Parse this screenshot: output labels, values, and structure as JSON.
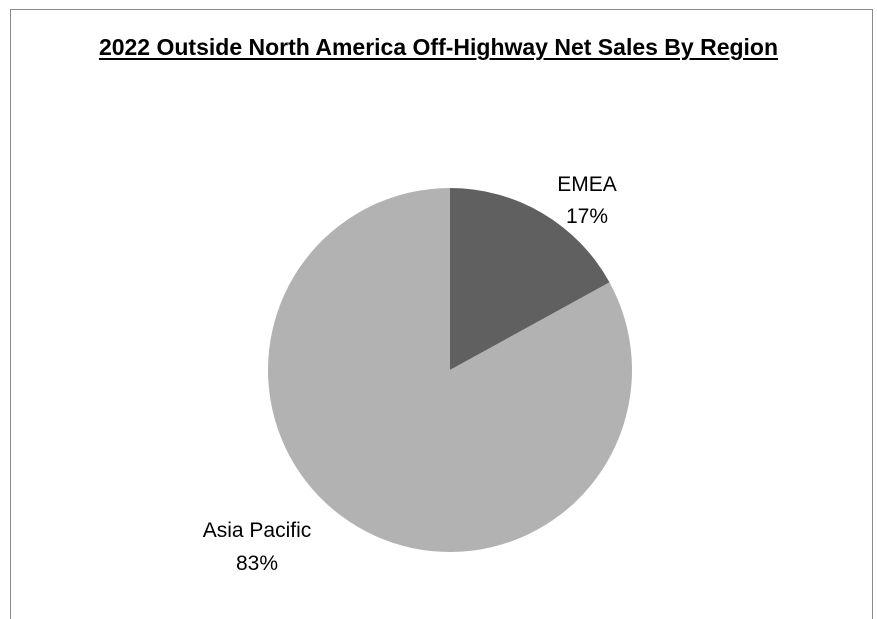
{
  "chart_data": {
    "type": "pie",
    "title": "2022 Outside North America Off-Highway Net Sales By Region",
    "slices": [
      {
        "label": "EMEA",
        "value": 17,
        "display": "17%",
        "color": "#606060"
      },
      {
        "label": "Asia Pacific",
        "value": 83,
        "display": "83%",
        "color": "#b2b2b2"
      }
    ],
    "start_angle": "12 o'clock",
    "direction": "clockwise",
    "legend": "none",
    "data_labels": "outside, category name and percentage"
  }
}
